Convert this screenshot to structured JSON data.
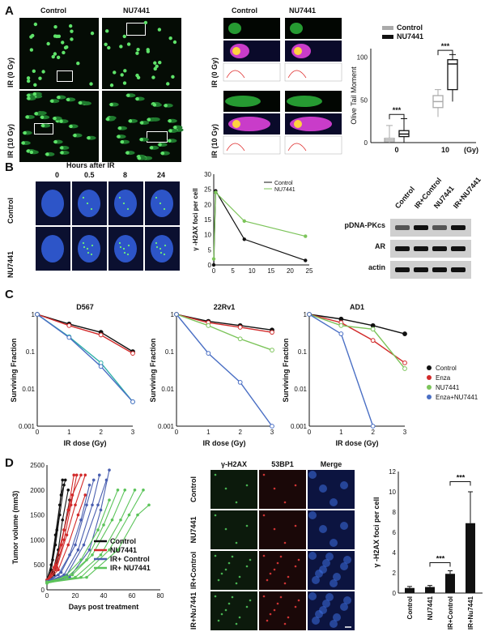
{
  "panels": {
    "A": "A",
    "B": "B",
    "C": "C",
    "D": "D"
  },
  "panelA": {
    "col_control": "Control",
    "col_nu": "NU7441",
    "row_ir0": "IR (0 Gy)",
    "row_ir10": "IR (10 Gy)"
  },
  "panelA_chart": {
    "type": "box",
    "ylabel": "Olive Tail Moment",
    "yticks": [
      "0",
      "50",
      "100"
    ],
    "ylim": [
      0,
      110
    ],
    "xgroups": [
      "0",
      "10"
    ],
    "xunit": "(Gy)",
    "legend": [
      "Control",
      "NU7441"
    ],
    "sig": [
      "***",
      "***"
    ],
    "series": [
      {
        "name": "Control",
        "color": "#aaaaaa",
        "boxes": [
          {
            "x": "0",
            "min": 0,
            "q1": 1,
            "median": 3,
            "q3": 5,
            "max": 20
          },
          {
            "x": "10",
            "min": 30,
            "q1": 41,
            "median": 48,
            "q3": 55,
            "max": 62
          }
        ]
      },
      {
        "name": "NU7441",
        "color": "#111111",
        "boxes": [
          {
            "x": "0",
            "min": 0,
            "q1": 7,
            "median": 10,
            "q3": 14,
            "max": 28
          },
          {
            "x": "10",
            "min": 48,
            "q1": 62,
            "median": 92,
            "q3": 97,
            "max": 103
          }
        ]
      }
    ]
  },
  "panelB": {
    "hours_title": "Hours after IR",
    "hours": [
      "0",
      "0.5",
      "8",
      "24"
    ],
    "row_control": "Control",
    "row_nu": "NU7441"
  },
  "panelB_chart": {
    "type": "line",
    "ylabel": "γ -H2AX foci per cell",
    "ylim": [
      0,
      30
    ],
    "yticks": [
      "0",
      "5",
      "10",
      "15",
      "20",
      "25",
      "30"
    ],
    "xlim": [
      0,
      25
    ],
    "xticks": [
      "0",
      "5",
      "10",
      "15",
      "20",
      "25"
    ],
    "series": [
      {
        "name": "Control",
        "color": "#111111",
        "x": [
          0,
          0.5,
          8,
          24
        ],
        "y": [
          0,
          24.5,
          8.5,
          1.5
        ]
      },
      {
        "name": "NU7441",
        "color": "#7cc45a",
        "x": [
          0,
          0.5,
          8,
          24
        ],
        "y": [
          2,
          24,
          14.5,
          9.5
        ]
      }
    ]
  },
  "panelB_blot": {
    "lanes": [
      "Control",
      "IR+Control",
      "NU7441",
      "IR+NU7441"
    ],
    "rows": [
      "pDNA-PKcs",
      "AR",
      "actin"
    ]
  },
  "panelC_legend": [
    "Control",
    "Enza",
    "NU7441",
    "Enza+NU7441"
  ],
  "panelC_common": {
    "ylabel": "Surviving Fraction",
    "xlabel": "IR dose (Gy)",
    "yticks": [
      "0.001",
      "0.01",
      "0.1",
      "1"
    ],
    "xticks": [
      "0",
      "1",
      "2",
      "3"
    ]
  },
  "chart_data": [
    {
      "type": "line",
      "title": "D567",
      "xlabel": "IR dose (Gy)",
      "ylabel": "Surviving Fraction",
      "yscale": "log",
      "ylim": [
        0.001,
        1
      ],
      "xlim": [
        0,
        3
      ],
      "series": [
        {
          "name": "Control",
          "color": "#111111",
          "x": [
            0,
            1,
            2,
            3
          ],
          "y": [
            1,
            0.55,
            0.33,
            0.1
          ]
        },
        {
          "name": "Enza",
          "color": "#d22b2b",
          "x": [
            0,
            1,
            2,
            3
          ],
          "y": [
            1,
            0.5,
            0.28,
            0.09
          ]
        },
        {
          "name": "NU7441",
          "color": "#2eb0a8",
          "x": [
            0,
            1,
            2,
            3
          ],
          "y": [
            1,
            0.25,
            0.05,
            0.0045
          ]
        },
        {
          "name": "Enza+NU7441",
          "color": "#4a6fc4",
          "x": [
            0,
            1,
            2,
            3
          ],
          "y": [
            1,
            0.24,
            0.04,
            0.0045
          ]
        }
      ]
    },
    {
      "type": "line",
      "title": "22Rv1",
      "xlabel": "IR dose (Gy)",
      "ylabel": "Surviving Fraction",
      "yscale": "log",
      "ylim": [
        0.001,
        1
      ],
      "xlim": [
        0,
        3
      ],
      "series": [
        {
          "name": "Control",
          "color": "#111111",
          "x": [
            0,
            1,
            2,
            3
          ],
          "y": [
            1,
            0.65,
            0.5,
            0.38
          ]
        },
        {
          "name": "Enza",
          "color": "#d22b2b",
          "x": [
            0,
            1,
            2,
            3
          ],
          "y": [
            1,
            0.6,
            0.45,
            0.33
          ]
        },
        {
          "name": "NU7441",
          "color": "#7cc45a",
          "x": [
            0,
            1,
            2,
            3
          ],
          "y": [
            1,
            0.5,
            0.22,
            0.11
          ]
        },
        {
          "name": "Enza+NU7441",
          "color": "#4a6fc4",
          "x": [
            0,
            1,
            2,
            3
          ],
          "y": [
            1,
            0.09,
            0.015,
            0.001
          ]
        }
      ]
    },
    {
      "type": "line",
      "title": "AD1",
      "xlabel": "IR dose (Gy)",
      "ylabel": "Surviving Fraction",
      "yscale": "log",
      "ylim": [
        0.001,
        1
      ],
      "xlim": [
        0,
        3
      ],
      "series": [
        {
          "name": "Control",
          "color": "#111111",
          "x": [
            0,
            1,
            2,
            3
          ],
          "y": [
            1,
            0.75,
            0.5,
            0.3
          ]
        },
        {
          "name": "Enza",
          "color": "#d22b2b",
          "x": [
            0,
            1,
            2,
            3
          ],
          "y": [
            1,
            0.6,
            0.2,
            0.05
          ]
        },
        {
          "name": "NU7441",
          "color": "#7cc45a",
          "x": [
            0,
            1,
            2,
            3
          ],
          "y": [
            1,
            0.5,
            0.4,
            0.035
          ]
        },
        {
          "name": "Enza+NU7441",
          "color": "#4a6fc4",
          "x": [
            0,
            1,
            2
          ],
          "y": [
            1,
            0.3,
            0.001
          ]
        }
      ]
    }
  ],
  "panelD_growth": {
    "type": "line",
    "ylabel": "Tumor volume (mm3)",
    "xlabel": "Days post treatment",
    "ylim": [
      0,
      2500
    ],
    "yticks": [
      "0",
      "500",
      "1000",
      "1500",
      "2000",
      "2500"
    ],
    "xlim": [
      0,
      80
    ],
    "xticks": [
      "0",
      "20",
      "40",
      "60",
      "80"
    ],
    "legend": [
      "Control",
      "NU7441",
      "IR+ Control",
      "IR+ NU7441"
    ],
    "groups": [
      {
        "name": "Control",
        "color": "#111111",
        "curves": [
          [
            [
              0,
              150
            ],
            [
              3,
              400
            ],
            [
              6,
              900
            ],
            [
              9,
              1500
            ],
            [
              12,
              2100
            ]
          ],
          [
            [
              0,
              200
            ],
            [
              3,
              500
            ],
            [
              6,
              1100
            ],
            [
              9,
              1700
            ],
            [
              11,
              2200
            ]
          ],
          [
            [
              0,
              180
            ],
            [
              4,
              600
            ],
            [
              7,
              1200
            ],
            [
              10,
              1900
            ],
            [
              13,
              2200
            ]
          ],
          [
            [
              0,
              160
            ],
            [
              4,
              350
            ],
            [
              8,
              800
            ],
            [
              11,
              1400
            ],
            [
              15,
              2000
            ]
          ],
          [
            [
              0,
              140
            ],
            [
              5,
              300
            ],
            [
              8,
              700
            ],
            [
              12,
              1200
            ],
            [
              16,
              1800
            ]
          ]
        ]
      },
      {
        "name": "NU7441",
        "color": "#d22b2b",
        "curves": [
          [
            [
              0,
              170
            ],
            [
              5,
              450
            ],
            [
              10,
              900
            ],
            [
              15,
              1600
            ],
            [
              19,
              2300
            ]
          ],
          [
            [
              0,
              150
            ],
            [
              6,
              400
            ],
            [
              12,
              1000
            ],
            [
              17,
              1700
            ],
            [
              21,
              2300
            ]
          ],
          [
            [
              0,
              200
            ],
            [
              6,
              500
            ],
            [
              12,
              1200
            ],
            [
              18,
              1900
            ],
            [
              24,
              2300
            ]
          ],
          [
            [
              0,
              180
            ],
            [
              7,
              450
            ],
            [
              14,
              1100
            ],
            [
              20,
              1700
            ],
            [
              27,
              2300
            ]
          ],
          [
            [
              0,
              160
            ],
            [
              8,
              400
            ],
            [
              15,
              900
            ],
            [
              22,
              1500
            ],
            [
              27,
              1900
            ]
          ]
        ]
      },
      {
        "name": "IR+ Control",
        "color": "#4a5fb0",
        "curves": [
          [
            [
              0,
              150
            ],
            [
              8,
              300
            ],
            [
              16,
              700
            ],
            [
              24,
              1400
            ],
            [
              30,
              2100
            ]
          ],
          [
            [
              0,
              170
            ],
            [
              10,
              350
            ],
            [
              20,
              900
            ],
            [
              28,
              1700
            ],
            [
              33,
              2200
            ]
          ],
          [
            [
              0,
              160
            ],
            [
              12,
              300
            ],
            [
              22,
              800
            ],
            [
              32,
              1700
            ],
            [
              37,
              2300
            ]
          ],
          [
            [
              0,
              150
            ],
            [
              14,
              300
            ],
            [
              26,
              900
            ],
            [
              36,
              1700
            ],
            [
              42,
              2200
            ]
          ],
          [
            [
              0,
              140
            ],
            [
              16,
              250
            ],
            [
              30,
              800
            ],
            [
              38,
              1600
            ],
            [
              44,
              2400
            ]
          ]
        ]
      },
      {
        "name": "IR+ NU7441",
        "color": "#5cc45a",
        "curves": [
          [
            [
              0,
              150
            ],
            [
              12,
              250
            ],
            [
              24,
              600
            ],
            [
              36,
              1200
            ],
            [
              44,
              1800
            ]
          ],
          [
            [
              0,
              140
            ],
            [
              14,
              250
            ],
            [
              28,
              600
            ],
            [
              40,
              1300
            ],
            [
              50,
              2000
            ]
          ],
          [
            [
              0,
              160
            ],
            [
              18,
              300
            ],
            [
              32,
              700
            ],
            [
              46,
              1400
            ],
            [
              55,
              2000
            ]
          ],
          [
            [
              0,
              130
            ],
            [
              20,
              250
            ],
            [
              38,
              700
            ],
            [
              52,
              1400
            ],
            [
              62,
              2000
            ]
          ],
          [
            [
              0,
              150
            ],
            [
              24,
              250
            ],
            [
              44,
              800
            ],
            [
              58,
              1500
            ],
            [
              68,
              2000
            ]
          ],
          [
            [
              0,
              140
            ],
            [
              28,
              250
            ],
            [
              50,
              800
            ],
            [
              64,
              1500
            ],
            [
              72,
              1700
            ]
          ]
        ]
      }
    ]
  },
  "panelD_micro": {
    "cols": [
      "γ-H2AX",
      "53BP1",
      "Merge"
    ],
    "rows": [
      "Control",
      "NU7441",
      "IR+Control",
      "IR+Nu7441"
    ]
  },
  "panelD_bar": {
    "type": "bar",
    "ylabel": "γ -H2AX foci per cell",
    "categories": [
      "Control",
      "NU7441",
      "IR+Control",
      "IR+Nu7441"
    ],
    "values": [
      0.5,
      0.6,
      1.9,
      6.9
    ],
    "errors": [
      0.15,
      0.15,
      0.3,
      3.1
    ],
    "ylim": [
      0,
      12
    ],
    "yticks": [
      "0",
      "2",
      "4",
      "6",
      "8",
      "10",
      "12"
    ],
    "sig": [
      "***",
      "***"
    ]
  }
}
